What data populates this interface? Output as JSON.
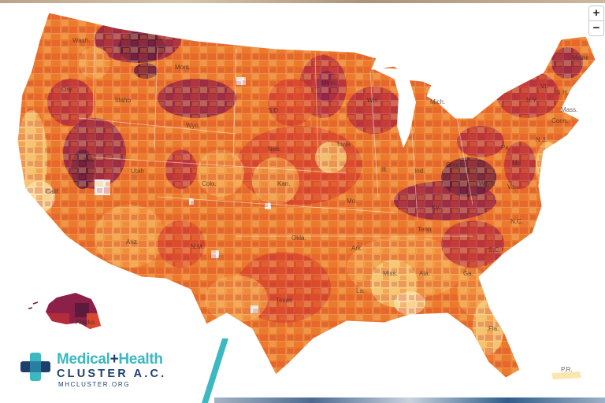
{
  "map": {
    "zoom_in_label": "+",
    "zoom_out_label": "−",
    "state_labels": [
      "Wash.",
      "Mont.",
      "Idaho",
      "Ore.",
      "Wyo.",
      "Nev.",
      "Calif.",
      "Utah",
      "Colo.",
      "Ariz.",
      "N.M.",
      "S.D.",
      "Neb.",
      "Kan.",
      "Okla.",
      "Texas",
      "Minn.",
      "Iowa",
      "Mo.",
      "Ark.",
      "La.",
      "Wis.",
      "Ill.",
      "Ind.",
      "Ohio",
      "Ky.",
      "Tenn.",
      "Miss.",
      "Ala.",
      "Ga.",
      "Fla.",
      "S.C.",
      "N.C.",
      "Va.",
      "W.Va.",
      "Pa.",
      "N.Y.",
      "Md.",
      "N.J.",
      "Conn.",
      "Mass.",
      "N.H.",
      "Vt.",
      "Maine",
      "Mich.",
      "Alaska",
      "P.R."
    ],
    "colors": {
      "darkest": "#5c1a3c",
      "dark": "#8c2048",
      "deep_red": "#b42b3c",
      "red_orange": "#d9482e",
      "orange": "#ec7a2c",
      "light_orange": "#f3a04a",
      "pale": "#f7cc7a",
      "palest": "#fbe6b0",
      "no_data": "#f1f1f1"
    }
  },
  "logo": {
    "line1_a": "Medical",
    "line1_plus": "+",
    "line1_b": "Health",
    "line2": "CLUSTER A.C.",
    "line3": "MHCLUSTER.ORG",
    "primary_color": "#3cb8c0",
    "secondary_color": "#1d3f6e"
  }
}
